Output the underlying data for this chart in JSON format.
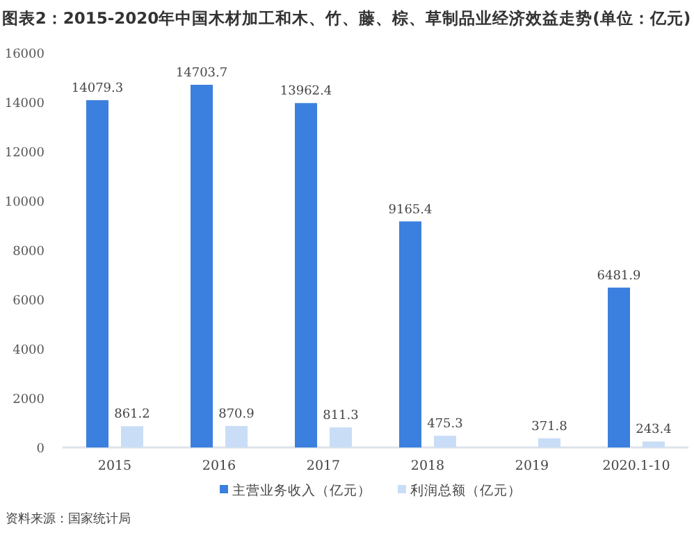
{
  "chart_data": {
    "type": "bar",
    "title": "图表2：2015-2020年中国木材加工和木、竹、藤、棕、草制品业经济效益走势(单位：亿元)",
    "categories": [
      "2015",
      "2016",
      "2017",
      "2018",
      "2019",
      "2020.1-10"
    ],
    "series": [
      {
        "name": "主营业务收入（亿元）",
        "color": "#3b80de",
        "values": [
          14079.3,
          14703.7,
          13962.4,
          9165.4,
          null,
          6481.9
        ]
      },
      {
        "name": "利润总额（亿元）",
        "color": "#c9ddf6",
        "values": [
          861.2,
          870.9,
          811.3,
          475.3,
          371.8,
          243.4
        ]
      }
    ],
    "ylim": [
      0,
      16000
    ],
    "yticks": [
      0,
      2000,
      4000,
      6000,
      8000,
      10000,
      12000,
      14000,
      16000
    ],
    "data_labels": true,
    "legend": "bottom",
    "grid": false,
    "annotations": [
      "资料来源：国家统计局"
    ]
  }
}
